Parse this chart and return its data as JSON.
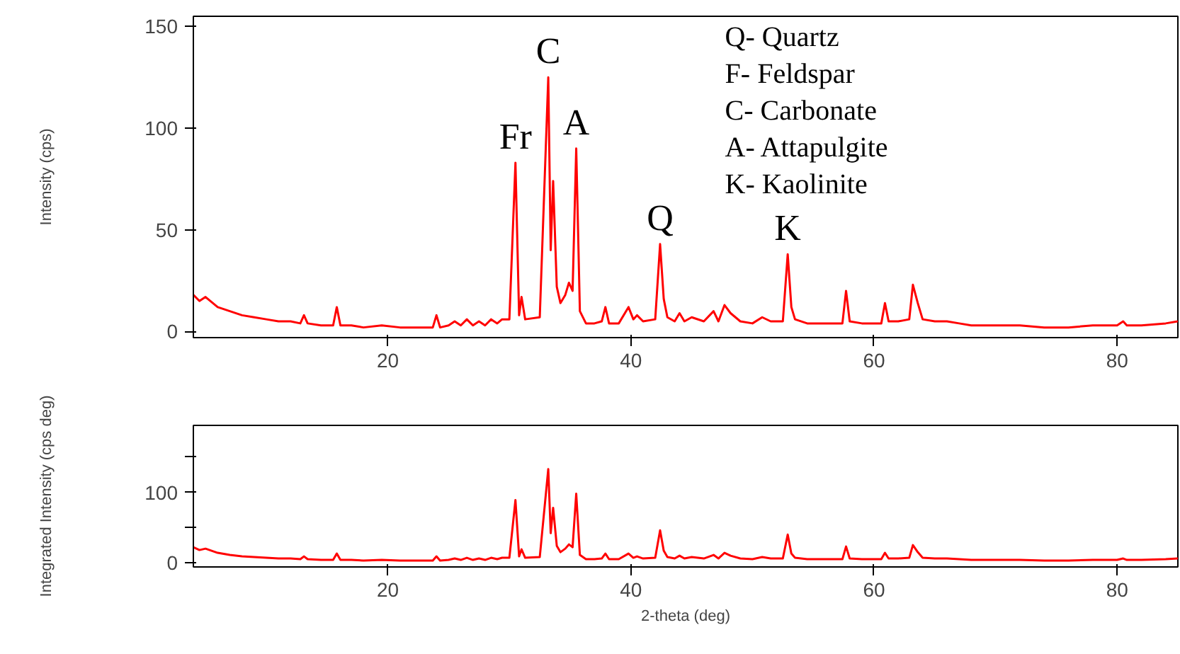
{
  "chart_data": [
    {
      "type": "line",
      "ylabel": "Intensity (cps)",
      "xlim": [
        4,
        85
      ],
      "ylim": [
        -3,
        155
      ],
      "xticks": [
        20,
        40,
        60,
        80
      ],
      "yticks": [
        0,
        50,
        100,
        150
      ],
      "grid": false,
      "x": [
        4,
        4.5,
        5,
        6,
        7,
        8,
        9,
        10,
        11,
        12,
        12.8,
        13.1,
        13.4,
        14.5,
        15.5,
        15.8,
        16.1,
        17,
        18,
        19.5,
        21,
        22.5,
        23.7,
        24.0,
        24.3,
        25,
        25.5,
        26,
        26.5,
        27,
        27.5,
        28,
        28.5,
        29,
        29.4,
        30.0,
        30.5,
        30.8,
        31.0,
        31.3,
        32.5,
        33.2,
        33.4,
        33.6,
        33.9,
        34.2,
        34.6,
        34.9,
        35.2,
        35.5,
        35.8,
        36.3,
        37.0,
        37.6,
        37.9,
        38.2,
        39.0,
        39.8,
        40.2,
        40.5,
        41,
        42.0,
        42.4,
        42.7,
        43.0,
        43.6,
        44.0,
        44.4,
        45.0,
        46,
        46.8,
        47.2,
        47.7,
        48.2,
        49,
        50,
        50.8,
        51.5,
        52.5,
        52.9,
        53.2,
        53.5,
        54.5,
        56,
        57.4,
        57.7,
        58.0,
        59,
        60.6,
        60.9,
        61.2,
        62,
        62.9,
        63.2,
        63.6,
        64,
        65,
        66,
        67,
        68,
        70,
        72,
        74,
        76,
        78,
        80,
        80.5,
        80.8,
        82,
        84,
        85
      ],
      "series": [
        {
          "color": "#ff0000",
          "values": [
            18,
            15,
            17,
            12,
            10,
            8,
            7,
            6,
            5,
            5,
            4,
            8,
            4,
            3,
            3,
            12,
            3,
            3,
            2,
            3,
            2,
            2,
            2,
            8,
            2,
            3,
            5,
            3,
            6,
            3,
            5,
            3,
            6,
            4,
            6,
            6,
            83,
            8,
            17,
            6,
            7,
            125,
            40,
            74,
            22,
            14,
            18,
            24,
            20,
            90,
            10,
            4,
            4,
            5,
            12,
            4,
            4,
            12,
            6,
            8,
            5,
            6,
            43,
            16,
            7,
            5,
            9,
            5,
            7,
            5,
            10,
            5,
            13,
            9,
            5,
            4,
            7,
            5,
            5,
            38,
            12,
            6,
            4,
            4,
            4,
            20,
            5,
            4,
            4,
            14,
            5,
            5,
            6,
            23,
            14,
            6,
            5,
            5,
            4,
            3,
            3,
            3,
            2,
            2,
            3,
            3,
            5,
            3,
            3,
            4,
            5
          ]
        }
      ],
      "annotations": [
        {
          "text": "Fr",
          "x": 30.5,
          "y": 83
        },
        {
          "text": "C",
          "x": 33.2,
          "y": 125
        },
        {
          "text": "A",
          "x": 35.5,
          "y": 90
        },
        {
          "text": "Q",
          "x": 42.4,
          "y": 43
        },
        {
          "text": "K",
          "x": 52.9,
          "y": 38
        },
        "Q- Quartz",
        "F- Feldspar",
        "C- Carbonate",
        "A- Attapulgite",
        "K- Kaolinite"
      ]
    },
    {
      "type": "line",
      "ylabel": "Integrated Intensity (cps deg)",
      "xlabel": "2-theta (deg)",
      "xlim": [
        4,
        85
      ],
      "ylim": [
        -6,
        195
      ],
      "xticks": [
        20,
        40,
        60,
        80
      ],
      "yticks": [
        0,
        {
          "value": 50,
          "label": null
        },
        100,
        {
          "value": 150,
          "label": null
        }
      ],
      "grid": false,
      "x": [
        4,
        4.5,
        5,
        6,
        7,
        8,
        9,
        10,
        11,
        12,
        12.8,
        13.1,
        13.4,
        14.5,
        15.5,
        15.8,
        16.1,
        17,
        18,
        19.5,
        21,
        22.5,
        23.7,
        24.0,
        24.3,
        25,
        25.5,
        26,
        26.5,
        27,
        27.5,
        28,
        28.5,
        29,
        29.4,
        30.0,
        30.5,
        30.8,
        31.0,
        31.3,
        32.5,
        33.2,
        33.4,
        33.6,
        33.9,
        34.2,
        34.6,
        34.9,
        35.2,
        35.5,
        35.8,
        36.3,
        37.0,
        37.6,
        37.9,
        38.2,
        39.0,
        39.8,
        40.2,
        40.5,
        41,
        42.0,
        42.4,
        42.7,
        43.0,
        43.6,
        44.0,
        44.4,
        45.0,
        46,
        46.8,
        47.2,
        47.7,
        48.2,
        49,
        50,
        50.8,
        51.5,
        52.5,
        52.9,
        53.2,
        53.5,
        54.5,
        56,
        57.4,
        57.7,
        58.0,
        59,
        60.6,
        60.9,
        61.2,
        62,
        62.9,
        63.2,
        63.6,
        64,
        65,
        66,
        67,
        68,
        70,
        72,
        74,
        76,
        78,
        80,
        80.5,
        80.8,
        82,
        84,
        85
      ],
      "series": [
        {
          "color": "#ff0000",
          "values": [
            22,
            18,
            20,
            14,
            11,
            9,
            8,
            7,
            6,
            6,
            5,
            9,
            5,
            4,
            4,
            13,
            4,
            4,
            3,
            4,
            3,
            3,
            3,
            9,
            3,
            4,
            6,
            4,
            7,
            4,
            6,
            4,
            7,
            5,
            7,
            7,
            89,
            9,
            19,
            7,
            8,
            133,
            42,
            78,
            24,
            15,
            20,
            26,
            22,
            98,
            11,
            5,
            5,
            6,
            13,
            5,
            5,
            13,
            7,
            9,
            6,
            7,
            46,
            17,
            8,
            6,
            10,
            6,
            8,
            6,
            11,
            6,
            14,
            10,
            6,
            5,
            8,
            6,
            6,
            40,
            13,
            7,
            5,
            5,
            5,
            23,
            6,
            5,
            5,
            14,
            6,
            6,
            7,
            25,
            15,
            7,
            6,
            6,
            5,
            4,
            4,
            4,
            3,
            3,
            4,
            4,
            6,
            4,
            4,
            5,
            6
          ]
        }
      ]
    }
  ]
}
